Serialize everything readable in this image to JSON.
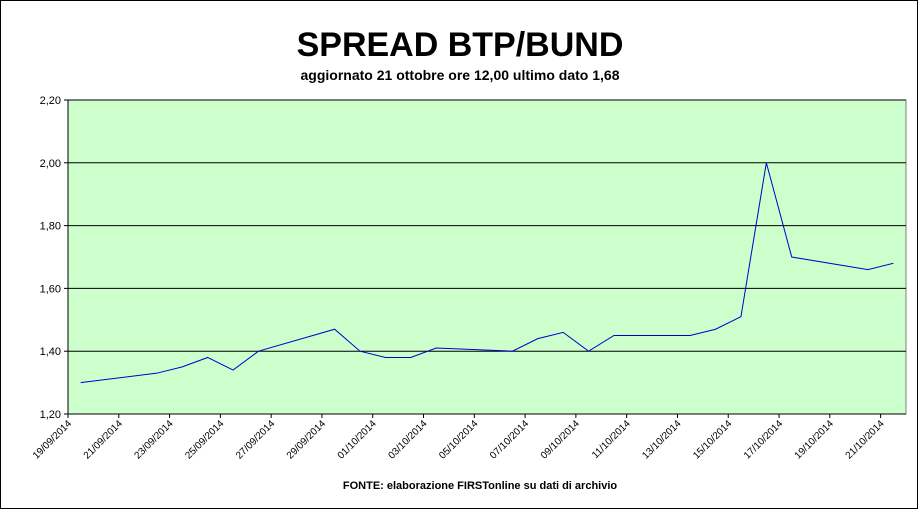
{
  "chart_data": {
    "type": "line",
    "title": "SPREAD BTP/BUND",
    "subtitle": "aggiornato 21 ottobre ore 12,00 ultimo dato 1,68",
    "source": "FONTE: elaborazione FIRSTonline su dati di archivio",
    "x": [
      "19/09/2014",
      "22/09/2014",
      "23/09/2014",
      "24/09/2014",
      "25/09/2014",
      "26/09/2014",
      "29/09/2014",
      "30/09/2014",
      "01/10/2014",
      "02/10/2014",
      "03/10/2014",
      "06/10/2014",
      "07/10/2014",
      "08/10/2014",
      "09/10/2014",
      "10/10/2014",
      "13/10/2014",
      "14/10/2014",
      "15/10/2014",
      "16/10/2014",
      "17/10/2014",
      "20/10/2014",
      "21/10/2014"
    ],
    "series": [
      {
        "color": "#0000cc",
        "values": [
          1.3,
          1.33,
          1.35,
          1.38,
          1.34,
          1.4,
          1.47,
          1.4,
          1.38,
          1.38,
          1.41,
          1.4,
          1.44,
          1.46,
          1.4,
          1.45,
          1.45,
          1.47,
          1.51,
          2.0,
          1.7,
          1.66,
          1.68
        ]
      }
    ],
    "xlim": [
      "19/09/2014",
      "22/10/2014"
    ],
    "xticks": [
      "19/09/2014",
      "21/09/2014",
      "23/09/2014",
      "25/09/2014",
      "27/09/2014",
      "29/09/2014",
      "01/10/2014",
      "03/10/2014",
      "05/10/2014",
      "07/10/2014",
      "09/10/2014",
      "11/10/2014",
      "13/10/2014",
      "15/10/2014",
      "17/10/2014",
      "19/10/2014",
      "21/10/2014"
    ],
    "ylim": [
      1.2,
      2.2
    ],
    "yticks": [
      {
        "value": 1.2,
        "label": "1,20"
      },
      {
        "value": 1.4,
        "label": "1,40"
      },
      {
        "value": 1.6,
        "label": "1,60"
      },
      {
        "value": 1.8,
        "label": "1,80"
      },
      {
        "value": 2.0,
        "label": "2,00"
      },
      {
        "value": 2.2,
        "label": "2,20"
      }
    ],
    "grid": true,
    "plot_background": "#ccffcc"
  }
}
